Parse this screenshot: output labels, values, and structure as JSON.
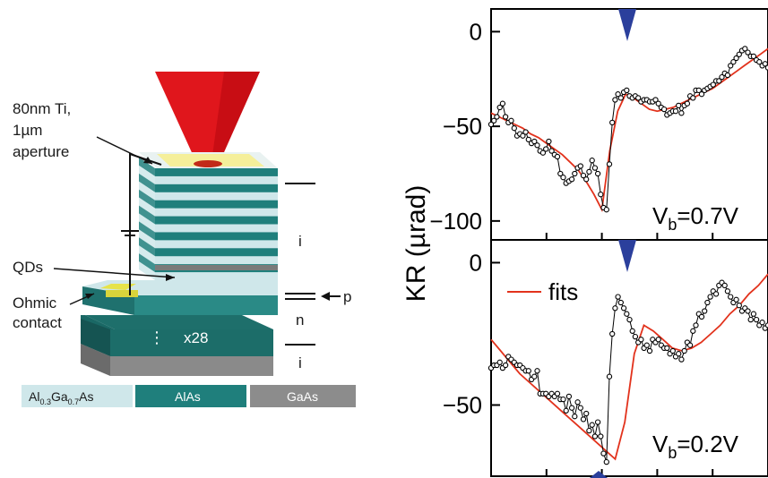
{
  "device": {
    "labels": {
      "metal": "80nm Ti,",
      "aperture_size": "1µm",
      "aperture": "aperture",
      "qds": "QDs",
      "ohmic_line1": "Ohmic",
      "ohmic_line2": "contact",
      "intrinsic_top": "i",
      "p_doped": "p",
      "n_doped": "n",
      "intrinsic_bottom": "i",
      "repeat_dots": "⋮",
      "repeat_count": "x28"
    },
    "legend": [
      {
        "base": "Al",
        "sub1": "0.3",
        "mid": "Ga",
        "sub2": "0.7",
        "end": "As",
        "color": "#cfe7ea"
      },
      {
        "label": "AlAs",
        "color": "#1f7f7c"
      },
      {
        "label": "GaAs",
        "color": "#8c8c8c"
      }
    ],
    "colors": {
      "laser": "#e0161c",
      "alas": "#1f7f7c",
      "algaas": "#cfe7ea",
      "gaas": "#8c8c8c",
      "metal": "#f5ef9a"
    }
  },
  "plot": {
    "ylabel": "KR (µrad)",
    "marker_color": "#2b3f9c",
    "fit_color": "#e2321c"
  },
  "chart_data": [
    {
      "type": "scatter",
      "panel": "top",
      "annotation": {
        "V": "V",
        "sub": "b",
        "value": "=0.7V"
      },
      "yticks": [
        0,
        -50,
        -100
      ],
      "ylim": [
        -110,
        12
      ],
      "xlim": [
        0,
        100
      ],
      "series": [
        {
          "kind": "data",
          "values": [
            -49,
            -47,
            -45,
            -40,
            -38,
            -45,
            -48,
            -47,
            -51,
            -55,
            -54,
            -55,
            -53,
            -57,
            -59,
            -58,
            -60,
            -63,
            -64,
            -62,
            -58,
            -63,
            -65,
            -66,
            -75,
            -77,
            -80,
            -79,
            -78,
            -75,
            -72,
            -71,
            -76,
            -78,
            -74,
            -68,
            -72,
            -75,
            -86,
            -93,
            -94,
            -70,
            -48,
            -36,
            -33,
            -35,
            -32,
            -31,
            -34,
            -35,
            -34,
            -35,
            -37,
            -36,
            -36,
            -37,
            -37,
            -36,
            -38,
            -40,
            -41,
            -44,
            -43,
            -42,
            -42,
            -39,
            -43,
            -39,
            -38,
            -34,
            -35,
            -31,
            -31,
            -33,
            -31,
            -30,
            -29,
            -28,
            -26,
            -26,
            -24,
            -22,
            -23,
            -18,
            -16,
            -14,
            -12,
            -10,
            -9,
            -11,
            -13,
            -13,
            -15,
            -16,
            -18,
            -17,
            -19
          ]
        },
        {
          "kind": "fit",
          "values": [
            -43,
            -45,
            -47,
            -49,
            -51,
            -54,
            -56,
            -59,
            -62,
            -65,
            -69,
            -73,
            -79,
            -86,
            -94,
            -63,
            -42,
            -33,
            -35,
            -38,
            -41,
            -42,
            -41,
            -40,
            -38,
            -36,
            -34,
            -32,
            -30,
            -27,
            -24,
            -21,
            -18,
            -15,
            -12,
            -9
          ]
        }
      ]
    },
    {
      "type": "scatter",
      "panel": "bottom",
      "annotation": {
        "V": "V",
        "sub": "b",
        "value": "=0.2V"
      },
      "legend": [
        "fits"
      ],
      "yticks": [
        0,
        -50
      ],
      "ylim": [
        -75,
        8
      ],
      "xlim": [
        0,
        100
      ],
      "series": [
        {
          "kind": "data",
          "values": [
            -37,
            -36,
            -36,
            -35,
            -37,
            -36,
            -33,
            -34,
            -35,
            -36,
            -36,
            -37,
            -38,
            -38,
            -41,
            -40,
            -38,
            -46,
            -46,
            -46,
            -47,
            -46,
            -47,
            -46,
            -48,
            -48,
            -52,
            -47,
            -51,
            -54,
            -49,
            -51,
            -55,
            -53,
            -59,
            -57,
            -61,
            -56,
            -61,
            -67,
            -70,
            -40,
            -25,
            -16,
            -12,
            -14,
            -16,
            -18,
            -20,
            -24,
            -26,
            -28,
            -27,
            -30,
            -29,
            -31,
            -27,
            -28,
            -27,
            -29,
            -30,
            -30,
            -32,
            -31,
            -33,
            -32,
            -34,
            -31,
            -28,
            -29,
            -24,
            -22,
            -18,
            -19,
            -17,
            -14,
            -12,
            -10,
            -11,
            -8,
            -7,
            -8,
            -10,
            -12,
            -14,
            -13,
            -15,
            -17,
            -16,
            -17,
            -20,
            -18,
            -20,
            -22,
            -21,
            -23,
            -22
          ]
        },
        {
          "kind": "fit",
          "values": [
            -27,
            -31,
            -35,
            -39,
            -42,
            -45,
            -48,
            -51,
            -54,
            -57,
            -60,
            -63,
            -66,
            -69,
            -56,
            -32,
            -22,
            -24,
            -27,
            -30,
            -31,
            -30,
            -28,
            -25,
            -22,
            -18,
            -15,
            -11,
            -8,
            -4
          ]
        }
      ]
    }
  ]
}
